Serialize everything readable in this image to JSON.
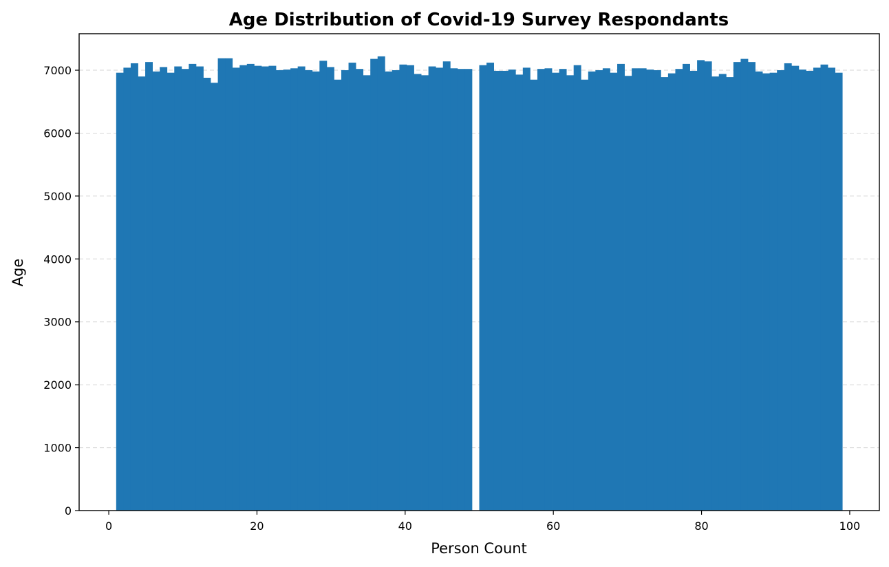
{
  "chart_data": {
    "type": "bar",
    "title": "Age Distribution of Covid-19 Survey Respondants",
    "xlabel": "Person Count",
    "ylabel": "Age",
    "xlim": [
      -4,
      104
    ],
    "ylim": [
      0,
      7580
    ],
    "xticks": [
      0,
      20,
      40,
      60,
      80,
      100
    ],
    "yticks": [
      0,
      1000,
      2000,
      3000,
      4000,
      5000,
      6000,
      7000
    ],
    "grid": "y-dashed",
    "bar_color": "#1f77b4",
    "bin_width": 0.98,
    "series": [
      {
        "x_start": [
          1,
          1.98,
          2.96,
          3.94,
          4.92,
          5.9,
          6.88,
          7.86,
          8.84,
          9.82,
          10.8,
          11.78,
          12.76,
          13.74,
          14.72,
          15.7,
          16.68,
          17.66,
          18.64,
          19.62,
          20.6,
          21.58,
          22.56,
          23.54,
          24.52,
          25.5,
          26.48,
          27.46,
          28.44,
          29.42,
          30.4,
          31.38,
          32.36,
          33.34,
          34.32,
          35.3,
          36.28,
          37.26,
          38.24,
          39.22,
          40.2,
          41.18,
          42.16,
          43.14,
          44.12,
          45.1,
          46.08,
          47.06,
          48.04,
          49.02,
          50,
          50.98,
          51.96,
          52.94,
          53.92,
          54.9,
          55.88,
          56.86,
          57.84,
          58.82,
          59.8,
          60.78,
          61.76,
          62.74,
          63.72,
          64.7,
          65.68,
          66.66,
          67.64,
          68.62,
          69.6,
          70.58,
          71.56,
          72.54,
          73.52,
          74.5,
          75.48,
          76.46,
          77.44,
          78.42,
          79.4,
          80.38,
          81.36,
          82.34,
          83.32,
          84.3,
          85.28,
          86.26,
          87.24,
          88.22,
          89.2,
          90.18,
          91.16,
          92.14,
          93.12,
          94.1,
          95.08,
          96.06,
          97.04,
          98.02
        ],
        "values": [
          6960,
          7040,
          7110,
          6900,
          7130,
          6980,
          7050,
          6960,
          7060,
          7020,
          7100,
          7060,
          6880,
          6800,
          7190,
          7190,
          7040,
          7080,
          7100,
          7070,
          7060,
          7070,
          7000,
          7010,
          7030,
          7060,
          7000,
          6980,
          7150,
          7050,
          6850,
          7000,
          7120,
          7020,
          6920,
          7180,
          7220,
          6980,
          7000,
          7090,
          7080,
          6940,
          6920,
          7060,
          7040,
          7140,
          7030,
          7020,
          7020,
          0,
          7080,
          7120,
          6990,
          6990,
          7010,
          6930,
          7040,
          6850,
          7020,
          7030,
          6960,
          7020,
          6920,
          7080,
          6850,
          6980,
          7000,
          7030,
          6960,
          7100,
          6910,
          7030,
          7030,
          7010,
          7000,
          6890,
          6950,
          7020,
          7100,
          6990,
          7160,
          7140,
          6900,
          6940,
          6890,
          7130,
          7180,
          7130,
          6980,
          6950,
          6960,
          7000,
          7110,
          7070,
          7010,
          6990,
          7040,
          7090,
          7040,
          6960
        ]
      }
    ]
  }
}
